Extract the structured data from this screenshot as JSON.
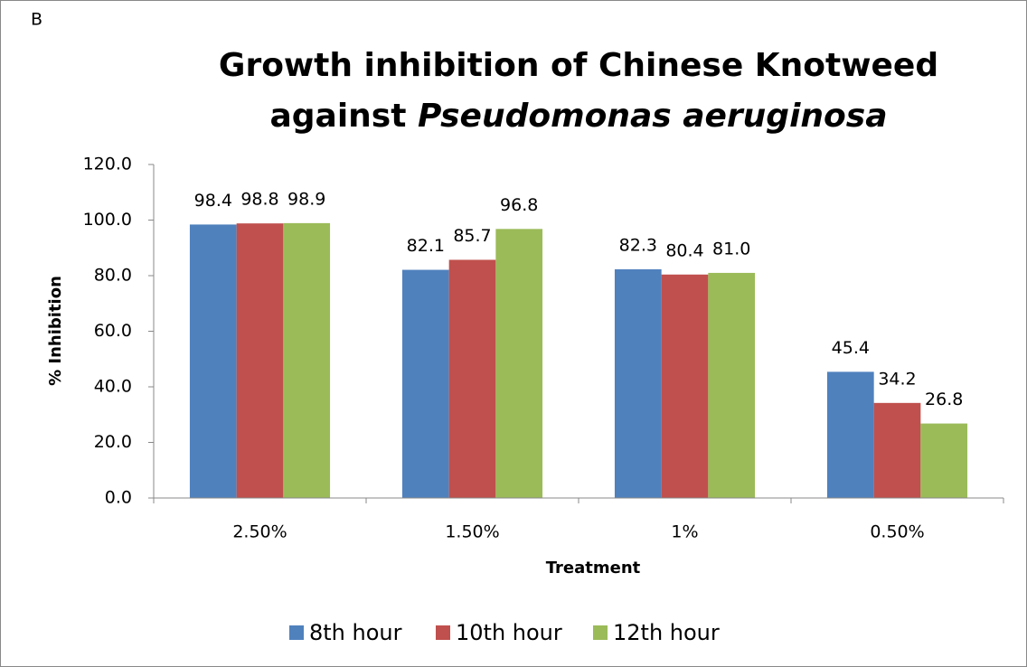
{
  "chart_data": {
    "type": "bar",
    "panel_label": "B",
    "title": [
      "Growth inhibition of Chinese Knotweed",
      "against",
      "Pseudomonas aeruginosa"
    ],
    "xlabel": "Treatment",
    "ylabel": "% Inhibition",
    "categories": [
      "2.50%",
      "1.50%",
      "1%",
      "0.50%"
    ],
    "series": [
      {
        "name": "8th hour",
        "color": "#4f81bd",
        "values": [
          98.4,
          82.1,
          82.3,
          45.4
        ],
        "value_labels": [
          "98.4",
          "82.1",
          "82.3",
          "45.4"
        ]
      },
      {
        "name": "10th hour",
        "color": "#c0504d",
        "values": [
          98.8,
          85.7,
          80.4,
          34.2
        ],
        "value_labels": [
          "98.8",
          "85.7",
          "80.4",
          "34.2"
        ]
      },
      {
        "name": "12th hour",
        "color": "#9bbb59",
        "values": [
          98.9,
          96.8,
          81.0,
          26.8
        ],
        "value_labels": [
          "98.9",
          "96.8",
          "81.0",
          "26.8"
        ]
      }
    ],
    "ylim": [
      0,
      120
    ],
    "yticks": [
      {
        "value": 0,
        "label": "0.0"
      },
      {
        "value": 20,
        "label": "20.0"
      },
      {
        "value": 40,
        "label": "40.0"
      },
      {
        "value": 60,
        "label": "60.0"
      },
      {
        "value": 80,
        "label": "80.0"
      },
      {
        "value": 100,
        "label": "100.0"
      },
      {
        "value": 120,
        "label": "120.0"
      }
    ],
    "grid": false,
    "legend": "bottom"
  }
}
